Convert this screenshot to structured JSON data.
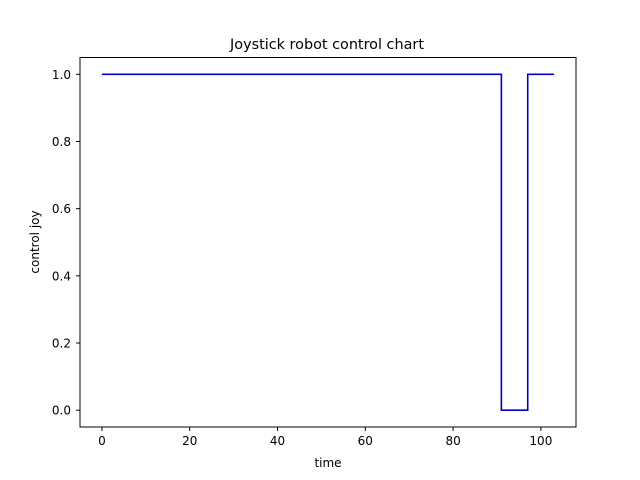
{
  "chart_data": {
    "type": "line",
    "title": "Joystick robot control chart",
    "xlabel": "time",
    "ylabel": "control joy",
    "xlim": [
      -5,
      108
    ],
    "ylim": [
      -0.05,
      1.05
    ],
    "xticks": [
      0,
      20,
      40,
      60,
      80,
      100
    ],
    "xtick_labels": [
      "0",
      "20",
      "40",
      "60",
      "80",
      "100"
    ],
    "yticks": [
      0.0,
      0.2,
      0.4,
      0.6,
      0.8,
      1.0
    ],
    "ytick_labels": [
      "0.0",
      "0.2",
      "0.4",
      "0.6",
      "0.8",
      "1.0"
    ],
    "grid": false,
    "series": [
      {
        "color": "#0000cc",
        "step": true,
        "x": [
          0,
          91,
          91,
          97,
          97,
          103
        ],
        "y": [
          1.0,
          1.0,
          0.0,
          0.0,
          1.0,
          1.0
        ]
      }
    ]
  }
}
